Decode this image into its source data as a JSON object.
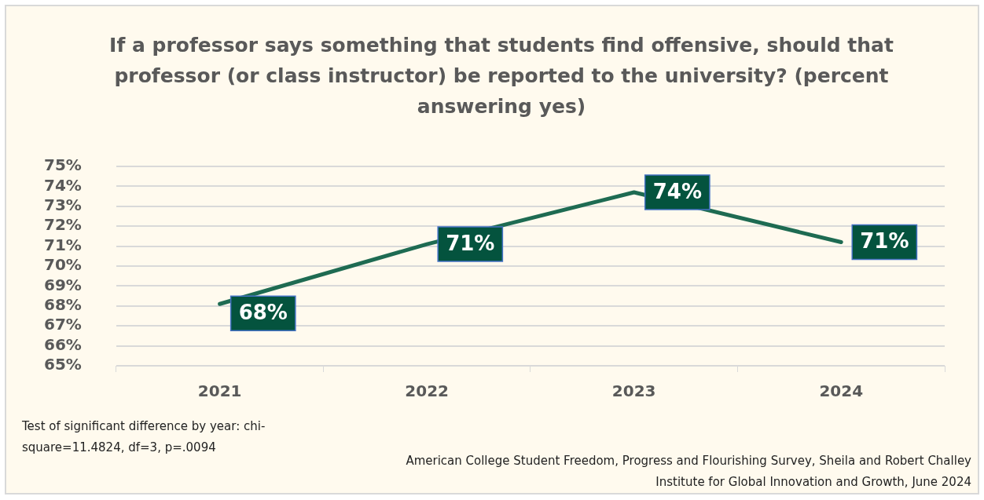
{
  "chart_data": {
    "type": "line",
    "title": "If a professor says something that students find offensive, should that professor (or class instructor) be reported to the university? (percent answering yes)",
    "categories": [
      "2021",
      "2022",
      "2023",
      "2024"
    ],
    "values": [
      68.1,
      71.1,
      73.7,
      71.2
    ],
    "value_labels": [
      "68%",
      "71%",
      "74%",
      "71%"
    ],
    "color": "#1e6b52",
    "ylim": [
      65,
      75
    ],
    "yticks": [
      {
        "value": 65,
        "label": "65%"
      },
      {
        "value": 66,
        "label": "66%"
      },
      {
        "value": 67,
        "label": "67%"
      },
      {
        "value": 68,
        "label": "68%"
      },
      {
        "value": 69,
        "label": "69%"
      },
      {
        "value": 70,
        "label": "70%"
      },
      {
        "value": 71,
        "label": "71%"
      },
      {
        "value": 72,
        "label": "72%"
      },
      {
        "value": 73,
        "label": "73%"
      },
      {
        "value": 74,
        "label": "74%"
      },
      {
        "value": 75,
        "label": "75%"
      }
    ],
    "grid": "y",
    "legend": false,
    "marker": "none",
    "line_style": "solid",
    "annotations": [
      "Test of significant difference by year: chi-square=11.4824, df=3, p=.0094",
      "American College Student Freedom, Progress and Flourishing Survey, Sheila and Robert Challey Institute for Global Innovation and Growth, June 2024"
    ]
  }
}
